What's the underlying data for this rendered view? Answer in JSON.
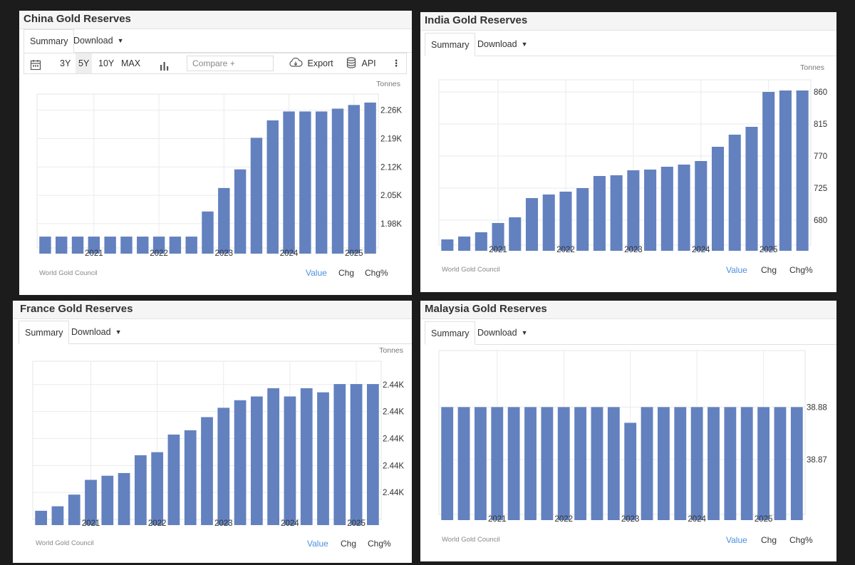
{
  "panels": [
    {
      "title": "China Gold Reserves",
      "tabs": {
        "summary": "Summary",
        "download": "Download"
      },
      "toolbar": {
        "periods": [
          "3Y",
          "5Y",
          "10Y",
          "MAX"
        ],
        "selected_period": "5Y",
        "compare_placeholder": "Compare +",
        "export_label": "Export",
        "api_label": "API"
      },
      "units": "Tonnes",
      "source": "World Gold Council",
      "links": {
        "value": "Value",
        "chg": "Chg",
        "chg_pct": "Chg%"
      }
    },
    {
      "title": "India Gold Reserves",
      "tabs": {
        "summary": "Summary",
        "download": "Download"
      },
      "units": "Tonnes",
      "source": "World Gold Council",
      "links": {
        "value": "Value",
        "chg": "Chg",
        "chg_pct": "Chg%"
      }
    },
    {
      "title": "France Gold Reserves",
      "tabs": {
        "summary": "Summary",
        "download": "Download"
      },
      "units": "Tonnes",
      "source": "World Gold Council",
      "links": {
        "value": "Value",
        "chg": "Chg",
        "chg_pct": "Chg%"
      }
    },
    {
      "title": "Malaysia Gold Reserves",
      "tabs": {
        "summary": "Summary",
        "download": "Download"
      },
      "source": "World Gold Council",
      "links": {
        "value": "Value",
        "chg": "Chg",
        "chg_pct": "Chg%"
      }
    }
  ],
  "colors": {
    "bar": "#6381bf",
    "accent": "#4b8fde"
  },
  "chart_data": [
    {
      "type": "bar",
      "title": "China Gold Reserves",
      "ylabel": "Tonnes",
      "x_tick_labels": [
        "2021",
        "2022",
        "2023",
        "2024",
        "2025"
      ],
      "x_tick_bar_index": [
        3,
        7,
        11,
        15,
        19
      ],
      "y_tick_labels": [
        "1.98K",
        "2.05K",
        "2.12K",
        "2.19K",
        "2.26K"
      ],
      "y_tick_values": [
        1980,
        2050,
        2120,
        2190,
        2260
      ],
      "ylim": [
        1920,
        2300
      ],
      "values": [
        1948,
        1948,
        1948,
        1948,
        1948,
        1948,
        1948,
        1948,
        1948,
        1948,
        2010,
        2068,
        2114,
        2192,
        2235,
        2257,
        2257,
        2257,
        2264,
        2273,
        2279
      ],
      "grid": true
    },
    {
      "type": "bar",
      "title": "India Gold Reserves",
      "ylabel": "Tonnes",
      "x_tick_labels": [
        "2021",
        "2022",
        "2023",
        "2024",
        "2025"
      ],
      "x_tick_bar_index": [
        3,
        7,
        11,
        15,
        19
      ],
      "y_tick_labels": [
        "680",
        "725",
        "770",
        "815",
        "860"
      ],
      "y_tick_values": [
        680,
        725,
        770,
        815,
        860
      ],
      "ylim": [
        645,
        877
      ],
      "values": [
        653,
        657,
        663,
        676,
        684,
        711,
        716,
        720,
        725,
        742,
        743,
        750,
        751,
        755,
        758,
        763,
        783,
        800,
        811,
        860,
        862,
        862
      ],
      "grid": true
    },
    {
      "type": "bar",
      "title": "France Gold Reserves",
      "ylabel": "Tonnes",
      "x_tick_labels": [
        "2021",
        "2022",
        "2023",
        "2024",
        "2025"
      ],
      "x_tick_bar_index": [
        3,
        7,
        11,
        15,
        19
      ],
      "y_tick_labels": [
        "2.44K",
        "2.44K",
        "2.44K",
        "2.44K",
        "2.44K"
      ],
      "y_tick_values": [
        2436.15,
        2436.3,
        2436.45,
        2436.6,
        2436.75
      ],
      "ylim": [
        2436.0,
        2436.88
      ],
      "values": [
        2436.048,
        2436.073,
        2436.138,
        2436.22,
        2436.243,
        2436.258,
        2436.357,
        2436.374,
        2436.472,
        2436.496,
        2436.569,
        2436.621,
        2436.663,
        2436.684,
        2436.73,
        2436.684,
        2436.73,
        2436.707,
        2436.753,
        2436.753,
        2436.753
      ],
      "grid": true
    },
    {
      "type": "bar",
      "title": "Malaysia Gold Reserves",
      "x_tick_labels": [
        "2021",
        "2022",
        "2023",
        "2024",
        "2025"
      ],
      "x_tick_bar_index": [
        3,
        7,
        11,
        15,
        19
      ],
      "y_tick_labels": [
        "38.87",
        "38.88"
      ],
      "y_tick_values": [
        38.87,
        38.88
      ],
      "ylim": [
        38.8595,
        38.8908
      ],
      "values": [
        38.88,
        38.88,
        38.88,
        38.88,
        38.88,
        38.88,
        38.88,
        38.88,
        38.88,
        38.88,
        38.88,
        38.877,
        38.88,
        38.88,
        38.88,
        38.88,
        38.88,
        38.88,
        38.88,
        38.88,
        38.88,
        38.88
      ],
      "grid": true
    }
  ]
}
